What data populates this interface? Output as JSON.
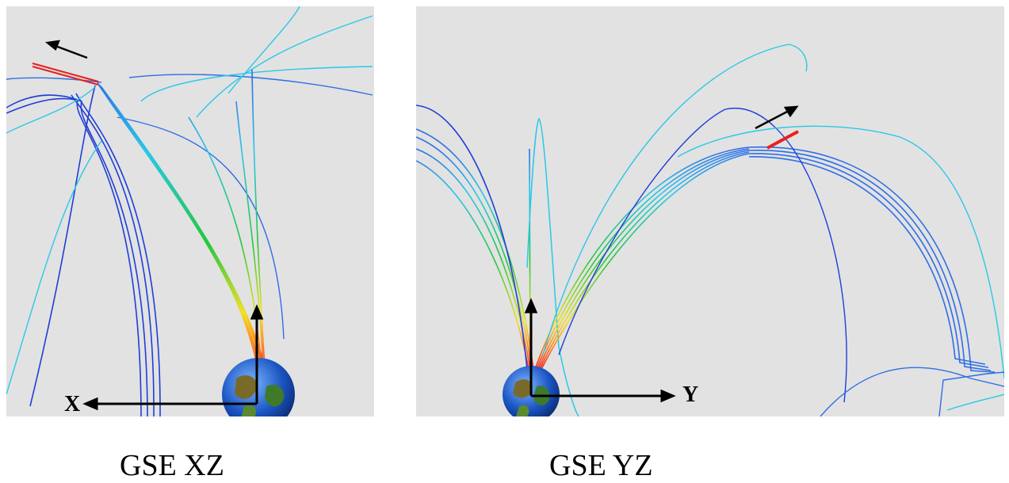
{
  "panels": [
    {
      "id": "xz",
      "caption": "GSE XZ",
      "axis_label": "X",
      "motion_arrow": "up-left"
    },
    {
      "id": "yz",
      "caption": "GSE YZ",
      "axis_label": "Y",
      "motion_arrow": "up-right"
    }
  ],
  "colors": {
    "background": "#e2e2e2",
    "dark_blue": "#1e3ed8",
    "blue": "#2d6ee6",
    "cyan": "#29c8e8",
    "green": "#22c83c",
    "yellow": "#f0e020",
    "orange": "#ff8a1a",
    "red": "#e82020",
    "axis": "#000000"
  },
  "icons": {
    "earth": "earth-globe-icon"
  }
}
